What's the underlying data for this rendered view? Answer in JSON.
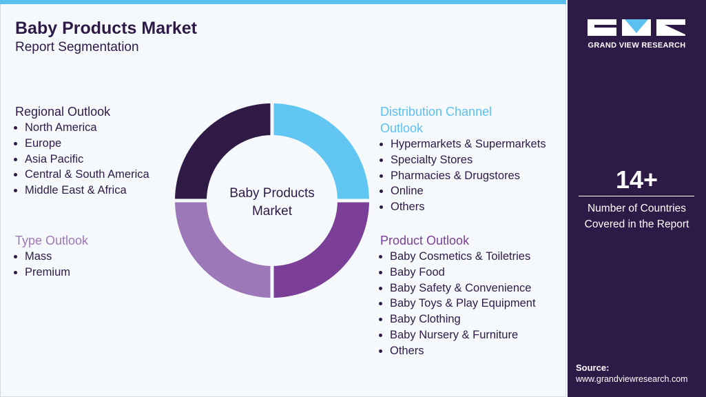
{
  "header": {
    "title": "Baby Products Market",
    "subtitle": "Report Segmentation"
  },
  "center_label": "Baby Products Market",
  "sections": [
    {
      "title": "Regional Outlook",
      "items": [
        "North America",
        "Europe",
        "Asia Pacific",
        "Central & South America",
        "Middle East & Africa"
      ]
    },
    {
      "title": "Type Outlook",
      "items": [
        "Mass",
        "Premium"
      ]
    },
    {
      "title": "Distribution Channel Outlook",
      "items": [
        "Hypermarkets & Supermarkets",
        "Specialty Stores",
        "Pharmacies & Drugstores",
        "Online",
        "Others"
      ]
    },
    {
      "title": "Product Outlook",
      "items": [
        "Baby Cosmetics & Toiletries",
        "Baby Food",
        "Baby Safety & Convenience",
        "Baby Toys & Play Equipment",
        "Baby Clothing",
        "Baby Nursery & Furniture",
        "Others"
      ]
    }
  ],
  "sidebar": {
    "brand": "GRAND VIEW RESEARCH",
    "stat": "14+",
    "stat_label": "Number of Countries Covered in the Report",
    "source_label": "Source:",
    "source_url": "www.grandviewresearch.com"
  }
}
